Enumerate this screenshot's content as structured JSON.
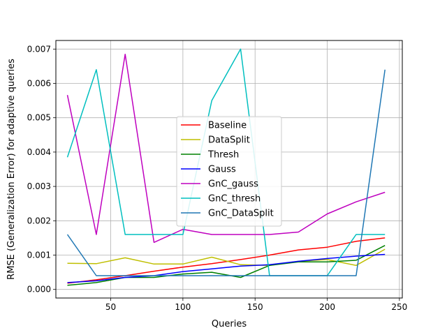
{
  "chart_data": {
    "type": "line",
    "title": "",
    "xlabel": "Queries",
    "ylabel": "RMSE (Generalization Error) for adaptive queries",
    "xlim": [
      12,
      252
    ],
    "ylim": [
      -0.00025,
      0.00725
    ],
    "xticks": [
      50,
      100,
      150,
      200,
      250
    ],
    "yticks": [
      0.0,
      0.001,
      0.002,
      0.003,
      0.004,
      0.005,
      0.006,
      0.007
    ],
    "ytick_labels": [
      "0.000",
      "0.001",
      "0.002",
      "0.003",
      "0.004",
      "0.005",
      "0.006",
      "0.007"
    ],
    "grid": true,
    "legend_position": "center",
    "x": [
      20,
      40,
      60,
      80,
      100,
      120,
      140,
      160,
      180,
      200,
      220,
      240
    ],
    "series": [
      {
        "name": "Baseline",
        "color": "#ff0000",
        "values": [
          0.00018,
          0.00028,
          0.0004,
          0.00053,
          0.00065,
          0.00075,
          0.00087,
          0.001,
          0.00115,
          0.00123,
          0.0014,
          0.0015
        ]
      },
      {
        "name": "DataSplit",
        "color": "#bfbf00",
        "values": [
          0.00076,
          0.00075,
          0.00092,
          0.00074,
          0.00074,
          0.00094,
          0.00072,
          0.0007,
          0.00082,
          0.00087,
          0.0007,
          0.00117
        ]
      },
      {
        "name": "Thresh",
        "color": "#008000",
        "values": [
          0.00012,
          0.0002,
          0.00035,
          0.00035,
          0.00045,
          0.0005,
          0.00035,
          0.0007,
          0.0008,
          0.0008,
          0.00085,
          0.00128
        ]
      },
      {
        "name": "Gauss",
        "color": "#0000ff",
        "values": [
          0.0002,
          0.00025,
          0.00035,
          0.0004,
          0.00052,
          0.0006,
          0.00068,
          0.00072,
          0.00082,
          0.0009,
          0.00097,
          0.00102
        ]
      },
      {
        "name": "GnC_gauss",
        "color": "#bf00bf",
        "values": [
          0.00566,
          0.0016,
          0.00685,
          0.00137,
          0.00175,
          0.0016,
          0.0016,
          0.0016,
          0.00167,
          0.0022,
          0.00255,
          0.00283
        ]
      },
      {
        "name": "GnC_thresh",
        "color": "#00bfbf",
        "values": [
          0.00385,
          0.0064,
          0.0016,
          0.0016,
          0.0016,
          0.0055,
          0.007,
          0.0004,
          0.0004,
          0.0004,
          0.0016,
          0.0016
        ]
      },
      {
        "name": "GnC_DataSplit",
        "color": "#1f77b4",
        "values": [
          0.0016,
          0.0004,
          0.0004,
          0.0004,
          0.0004,
          0.0004,
          0.0004,
          0.0004,
          0.0004,
          0.0004,
          0.0004,
          0.0064
        ]
      }
    ]
  }
}
